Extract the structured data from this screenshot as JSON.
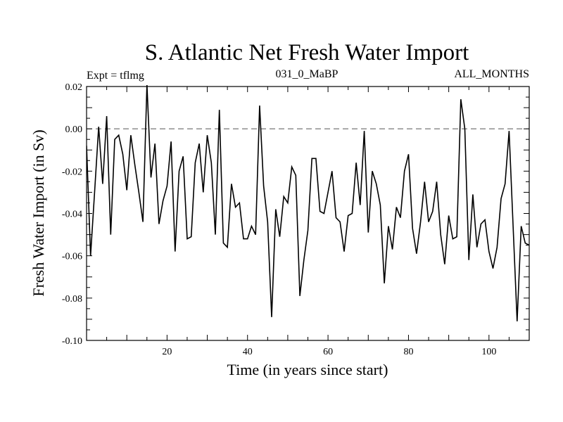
{
  "chart_data": {
    "type": "line",
    "title": "S. Atlantic Net Fresh Water Import",
    "subtitle_left": "Expt = tflmg",
    "subtitle_center": "031_0_MaBP",
    "subtitle_right": "ALL_MONTHS",
    "xlabel": "Time (in years since start)",
    "ylabel": "Fresh Water Import (in Sv)",
    "xlim": [
      0,
      110
    ],
    "ylim": [
      -0.1,
      0.02
    ],
    "xticks": [
      20,
      40,
      60,
      80,
      100
    ],
    "xtick_labels": [
      "20",
      "40",
      "60",
      "80",
      "100"
    ],
    "yticks": [
      -0.1,
      -0.08,
      -0.06,
      -0.04,
      -0.02,
      0.0,
      0.02
    ],
    "ytick_labels": [
      "-0.10",
      "-0.08",
      "-0.06",
      "-0.04",
      "-0.02",
      "0.00",
      "0.02"
    ],
    "reference_line": {
      "y": 0.0,
      "style": "dashed"
    },
    "series": [
      {
        "name": "Fresh Water Import",
        "x": [
          0,
          1,
          2,
          3,
          4,
          5,
          6,
          7,
          8,
          9,
          10,
          11,
          12,
          13,
          14,
          15,
          16,
          17,
          18,
          19,
          20,
          21,
          22,
          23,
          24,
          25,
          26,
          27,
          28,
          29,
          30,
          31,
          32,
          33,
          34,
          35,
          36,
          37,
          38,
          39,
          40,
          41,
          42,
          43,
          44,
          45,
          46,
          47,
          48,
          49,
          50,
          51,
          52,
          53,
          54,
          55,
          56,
          57,
          58,
          59,
          60,
          61,
          62,
          63,
          64,
          65,
          66,
          67,
          68,
          69,
          70,
          71,
          72,
          73,
          74,
          75,
          76,
          77,
          78,
          79,
          80,
          81,
          82,
          83,
          84,
          85,
          86,
          87,
          88,
          89,
          90,
          91,
          92,
          93,
          94,
          95,
          96,
          97,
          98,
          99,
          100,
          101,
          102,
          103,
          104,
          105,
          106,
          107,
          108,
          109,
          110
        ],
        "y": [
          -0.008,
          -0.06,
          -0.03,
          0.001,
          -0.026,
          0.006,
          -0.05,
          -0.005,
          -0.003,
          -0.012,
          -0.029,
          -0.003,
          -0.017,
          -0.03,
          -0.044,
          0.021,
          -0.023,
          -0.007,
          -0.045,
          -0.034,
          -0.027,
          -0.006,
          -0.058,
          -0.02,
          -0.013,
          -0.052,
          -0.051,
          -0.016,
          -0.007,
          -0.03,
          -0.003,
          -0.016,
          -0.05,
          0.009,
          -0.054,
          -0.056,
          -0.026,
          -0.037,
          -0.035,
          -0.052,
          -0.052,
          -0.046,
          -0.05,
          0.011,
          -0.027,
          -0.044,
          -0.089,
          -0.038,
          -0.051,
          -0.032,
          -0.035,
          -0.018,
          -0.022,
          -0.079,
          -0.062,
          -0.048,
          -0.014,
          -0.014,
          -0.039,
          -0.04,
          -0.03,
          -0.02,
          -0.042,
          -0.044,
          -0.058,
          -0.041,
          -0.04,
          -0.016,
          -0.036,
          -0.001,
          -0.049,
          -0.02,
          -0.026,
          -0.036,
          -0.073,
          -0.046,
          -0.057,
          -0.037,
          -0.042,
          -0.02,
          -0.012,
          -0.047,
          -0.059,
          -0.044,
          -0.025,
          -0.044,
          -0.039,
          -0.025,
          -0.05,
          -0.064,
          -0.041,
          -0.052,
          -0.051,
          0.014,
          0.0,
          -0.062,
          -0.031,
          -0.056,
          -0.045,
          -0.043,
          -0.058,
          -0.066,
          -0.056,
          -0.033,
          -0.026,
          -0.001,
          -0.046,
          -0.091,
          -0.046,
          -0.054,
          -0.055
        ]
      }
    ]
  }
}
